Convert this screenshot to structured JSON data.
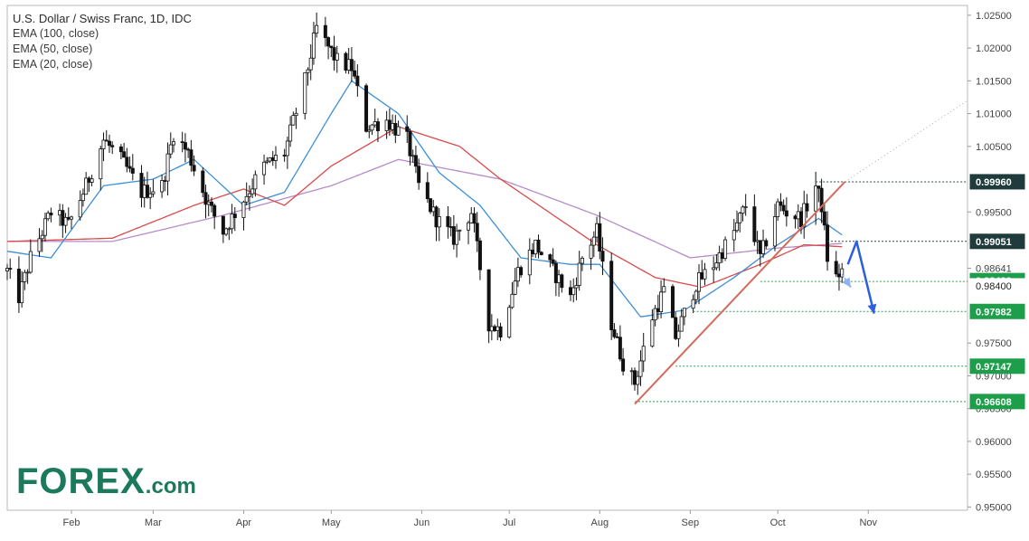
{
  "legend": {
    "title": "U.S. Dollar / Swiss Franc, 1D, IDC",
    "ema100": "EMA (100, close)",
    "ema50": "EMA (50, close)",
    "ema20": "EMA (20, close)"
  },
  "logo": {
    "main": "FOREX",
    "suffix": ".com"
  },
  "colors": {
    "ema20": "#3d8fd6",
    "ema50": "#d94a4a",
    "ema100": "#b58cc9",
    "trendline": "#d46a5c",
    "support_label": "#1e9e4a",
    "resistance_label": "#1f3b3b",
    "forecast_arrow": "#2b5fe0",
    "candle": "#111111"
  },
  "chart_data": {
    "type": "candlestick",
    "x_range": [
      "2019-01-10",
      "2019-12-05"
    ],
    "y_range": [
      0.9495,
      1.0265
    ],
    "y_ticks": [
      "1.02500",
      "1.02000",
      "1.01500",
      "1.01000",
      "1.00500",
      "0.99500",
      "0.98641",
      "0.97500",
      "0.97000",
      "0.96500",
      "0.96000",
      "0.95500",
      "0.95000"
    ],
    "x_ticks": [
      "Feb",
      "Mar",
      "Apr",
      "May",
      "Jun",
      "Jul",
      "Aug",
      "Sep",
      "Oct",
      "Nov"
    ],
    "price_labels": [
      {
        "label": "0.99960",
        "value": 0.9996,
        "kind": "resistance"
      },
      {
        "label": "0.99051",
        "value": 0.99051,
        "kind": "resistance"
      },
      {
        "label": "0.98439",
        "value": 0.98439,
        "kind": "support"
      },
      {
        "label": "0.98400",
        "value": 0.984,
        "kind": "current"
      },
      {
        "label": "0.97982",
        "value": 0.97982,
        "kind": "support"
      },
      {
        "label": "0.97147",
        "value": 0.97147,
        "kind": "support"
      },
      {
        "label": "0.96608",
        "value": 0.96608,
        "kind": "support"
      }
    ],
    "anchors": [
      [
        "2019-01-10",
        0.986
      ],
      [
        "2019-01-14",
        0.982
      ],
      [
        "2019-01-18",
        0.988
      ],
      [
        "2019-01-25",
        0.995
      ],
      [
        "2019-01-31",
        0.993
      ],
      [
        "2019-02-06",
        0.999
      ],
      [
        "2019-02-12",
        1.006
      ],
      [
        "2019-02-18",
        1.003
      ],
      [
        "2019-02-25",
        0.998
      ],
      [
        "2019-03-04",
        0.999
      ],
      [
        "2019-03-08",
        1.007
      ],
      [
        "2019-03-13",
        1.004
      ],
      [
        "2019-03-20",
        0.996
      ],
      [
        "2019-03-25",
        0.992
      ],
      [
        "2019-04-01",
        0.997
      ],
      [
        "2019-04-08",
        1.002
      ],
      [
        "2019-04-15",
        1.004
      ],
      [
        "2019-04-22",
        1.015
      ],
      [
        "2019-04-26",
        1.023
      ],
      [
        "2019-05-03",
        1.018
      ],
      [
        "2019-05-08",
        1.017
      ],
      [
        "2019-05-13",
        1.008
      ],
      [
        "2019-05-20",
        1.009
      ],
      [
        "2019-05-27",
        1.006
      ],
      [
        "2019-05-31",
        0.999
      ],
      [
        "2019-06-06",
        0.994
      ],
      [
        "2019-06-12",
        0.991
      ],
      [
        "2019-06-18",
        0.995
      ],
      [
        "2019-06-24",
        0.978
      ],
      [
        "2019-06-28",
        0.977
      ],
      [
        "2019-07-04",
        0.986
      ],
      [
        "2019-07-10",
        0.99
      ],
      [
        "2019-07-16",
        0.986
      ],
      [
        "2019-07-22",
        0.982
      ],
      [
        "2019-07-26",
        0.988
      ],
      [
        "2019-07-31",
        0.992
      ],
      [
        "2019-08-05",
        0.978
      ],
      [
        "2019-08-09",
        0.972
      ],
      [
        "2019-08-13",
        0.969
      ],
      [
        "2019-08-19",
        0.979
      ],
      [
        "2019-08-23",
        0.983
      ],
      [
        "2019-08-27",
        0.976
      ],
      [
        "2019-09-03",
        0.984
      ],
      [
        "2019-09-09",
        0.987
      ],
      [
        "2019-09-16",
        0.992
      ],
      [
        "2019-09-20",
        0.996
      ],
      [
        "2019-09-25",
        0.988
      ],
      [
        "2019-10-01",
        0.996
      ],
      [
        "2019-10-04",
        0.995
      ],
      [
        "2019-10-09",
        0.994
      ],
      [
        "2019-10-14",
        0.999
      ],
      [
        "2019-10-16",
        0.996
      ],
      [
        "2019-10-18",
        0.988
      ],
      [
        "2019-10-21",
        0.985
      ],
      [
        "2019-10-22",
        0.9855
      ],
      [
        "2019-10-23",
        0.986
      ]
    ],
    "ema_anchors": {
      "ema20": [
        [
          "2019-01-10",
          0.989
        ],
        [
          "2019-01-25",
          0.988
        ],
        [
          "2019-02-12",
          0.999
        ],
        [
          "2019-03-01",
          1.0
        ],
        [
          "2019-03-15",
          1.003
        ],
        [
          "2019-04-01",
          0.996
        ],
        [
          "2019-04-15",
          0.998
        ],
        [
          "2019-05-01",
          1.01
        ],
        [
          "2019-05-08",
          1.015
        ],
        [
          "2019-05-24",
          1.01
        ],
        [
          "2019-06-07",
          1.001
        ],
        [
          "2019-06-21",
          0.996
        ],
        [
          "2019-07-05",
          0.988
        ],
        [
          "2019-07-22",
          0.987
        ],
        [
          "2019-08-01",
          0.987
        ],
        [
          "2019-08-15",
          0.979
        ],
        [
          "2019-08-30",
          0.98
        ],
        [
          "2019-09-16",
          0.985
        ],
        [
          "2019-10-01",
          0.99
        ],
        [
          "2019-10-15",
          0.994
        ],
        [
          "2019-10-23",
          0.9915
        ]
      ],
      "ema50": [
        [
          "2019-01-10",
          0.9905
        ],
        [
          "2019-02-15",
          0.991
        ],
        [
          "2019-03-15",
          0.996
        ],
        [
          "2019-04-01",
          0.9985
        ],
        [
          "2019-04-15",
          0.996
        ],
        [
          "2019-05-01",
          1.002
        ],
        [
          "2019-05-24",
          1.008
        ],
        [
          "2019-06-14",
          1.005
        ],
        [
          "2019-06-28",
          1.0
        ],
        [
          "2019-07-31",
          0.99
        ],
        [
          "2019-08-20",
          0.985
        ],
        [
          "2019-09-05",
          0.9835
        ],
        [
          "2019-09-25",
          0.987
        ],
        [
          "2019-10-10",
          0.99
        ],
        [
          "2019-10-23",
          0.9897
        ]
      ],
      "ema100": [
        [
          "2019-01-10",
          0.9905
        ],
        [
          "2019-02-15",
          0.9905
        ],
        [
          "2019-03-25",
          0.9945
        ],
        [
          "2019-05-01",
          0.999
        ],
        [
          "2019-05-24",
          1.003
        ],
        [
          "2019-06-28",
          1.0
        ],
        [
          "2019-07-31",
          0.9945
        ],
        [
          "2019-09-01",
          0.988
        ],
        [
          "2019-10-01",
          0.9895
        ],
        [
          "2019-10-23",
          0.9902
        ]
      ]
    },
    "trendline": {
      "from": [
        "2019-08-13",
        0.9657
      ],
      "to": [
        "2019-10-24",
        0.9996
      ]
    },
    "trendline_extension": {
      "from": [
        "2019-10-24",
        0.9996
      ],
      "to": [
        "2019-12-05",
        1.012
      ]
    },
    "level_lines": [
      {
        "value": 0.9996,
        "from": "2019-10-14"
      },
      {
        "value": 0.99051,
        "from": "2019-10-18"
      },
      {
        "value": 0.98439,
        "from": "2019-09-25"
      },
      {
        "value": 0.97982,
        "from": "2019-09-02"
      },
      {
        "value": 0.97147,
        "from": "2019-08-27"
      },
      {
        "value": 0.96608,
        "from": "2019-08-13"
      }
    ],
    "forecast_path": [
      [
        "2019-10-25",
        0.987
      ],
      [
        "2019-10-28",
        0.9905
      ],
      [
        "2019-11-03",
        0.9795
      ]
    ],
    "forecast_alt": [
      [
        "2019-10-23",
        0.9855
      ],
      [
        "2019-10-26",
        0.9835
      ]
    ]
  }
}
